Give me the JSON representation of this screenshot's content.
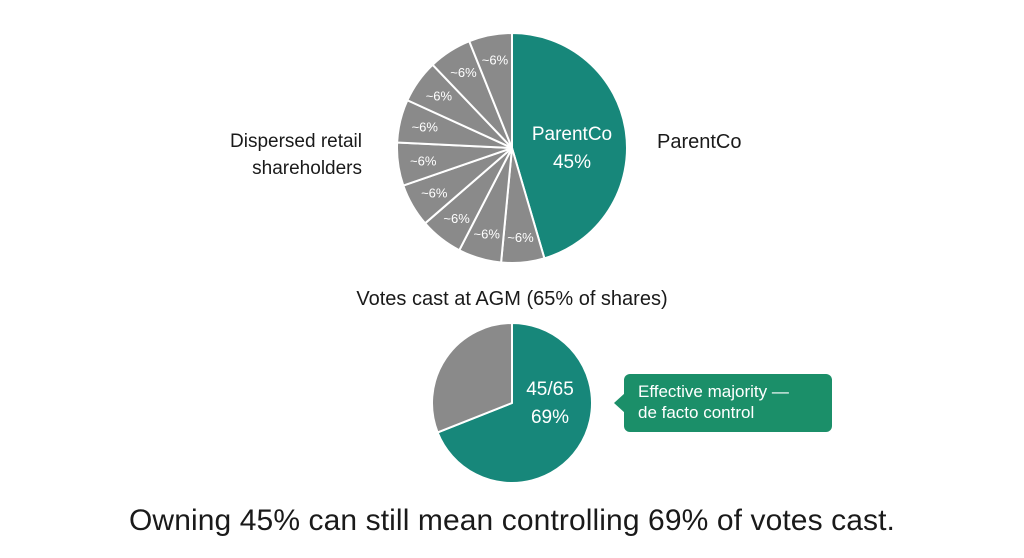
{
  "colors": {
    "controlling": "#17877a",
    "retail": "#8a8a8a",
    "callout_bg": "#1b8f69",
    "divider": "#ffffff"
  },
  "chart_data": [
    {
      "type": "pie",
      "slices": [
        {
          "label": "ParentCo",
          "value": 45,
          "value_label": "45%",
          "color": "#17877a"
        },
        {
          "label": "",
          "value": 6,
          "value_label": "~6%",
          "color": "#8a8a8a"
        },
        {
          "label": "",
          "value": 6,
          "value_label": "~6%",
          "color": "#8a8a8a"
        },
        {
          "label": "",
          "value": 6,
          "value_label": "~6%",
          "color": "#8a8a8a"
        },
        {
          "label": "",
          "value": 6,
          "value_label": "~6%",
          "color": "#8a8a8a"
        },
        {
          "label": "",
          "value": 6,
          "value_label": "~6%",
          "color": "#8a8a8a"
        },
        {
          "label": "",
          "value": 6,
          "value_label": "~6%",
          "color": "#8a8a8a"
        },
        {
          "label": "",
          "value": 6,
          "value_label": "~6%",
          "color": "#8a8a8a"
        },
        {
          "label": "",
          "value": 6,
          "value_label": "~6%",
          "color": "#8a8a8a"
        },
        {
          "label": "",
          "value": 6,
          "value_label": "~6%",
          "color": "#8a8a8a"
        }
      ],
      "inner_label_lines": [
        "ParentCo",
        "45%"
      ],
      "left_label_lines": [
        "Dispersed retail",
        "shareholders"
      ],
      "right_label": "ParentCo"
    },
    {
      "type": "pie",
      "title": "Votes cast at AGM (65% of shares)",
      "slices": [
        {
          "label": "45/65",
          "value": 69,
          "value_label": "69%",
          "color": "#17877a"
        },
        {
          "label": "",
          "value": 31,
          "color": "#8a8a8a"
        }
      ],
      "inner_label_lines": [
        "45/65",
        "69%"
      ],
      "callout_lines": [
        "Effective majority —",
        "de facto control"
      ]
    }
  ],
  "caption": "Owning 45% can still mean controlling 69% of votes cast."
}
